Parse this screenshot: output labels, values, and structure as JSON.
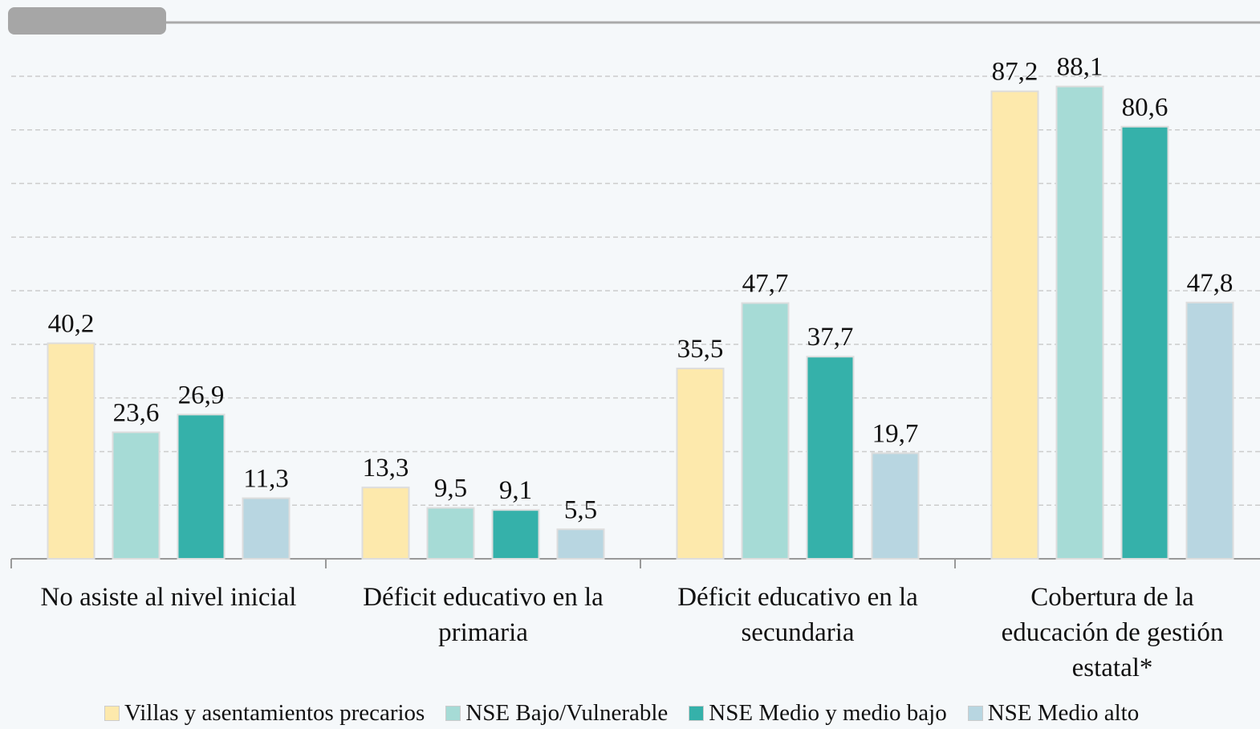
{
  "chart_data": {
    "type": "bar",
    "categories": [
      "No asiste al nivel inicial",
      "Déficit educativo en la\nprimaria",
      "Déficit educativo en la\nsecundaria",
      "Cobertura de la\neducación de gestión\nestatal*"
    ],
    "series": [
      {
        "name": "Villas y asentamientos precarios",
        "color": "#fde9ac",
        "values": [
          40.2,
          13.3,
          35.5,
          87.2
        ],
        "value_labels": [
          "40,2",
          "13,3",
          "35,5",
          "87,2"
        ]
      },
      {
        "name": "NSE Bajo/Vulnerable",
        "color": "#a6dbd6",
        "values": [
          23.6,
          9.5,
          47.7,
          88.1
        ],
        "value_labels": [
          "23,6",
          "9,5",
          "47,7",
          "88,1"
        ]
      },
      {
        "name": "NSE Medio y medio bajo",
        "color": "#35b1aa",
        "values": [
          26.9,
          9.1,
          37.7,
          80.6
        ],
        "value_labels": [
          "26,9",
          "9,1",
          "37,7",
          "80,6"
        ]
      },
      {
        "name": "NSE Medio alto",
        "color": "#b8d6e1",
        "values": [
          11.3,
          5.5,
          19.7,
          47.8
        ],
        "value_labels": [
          "11,3",
          "5,5",
          "19,7",
          "47,8"
        ]
      }
    ],
    "ylim": [
      0,
      90
    ],
    "yticks": [
      0,
      10,
      20,
      30,
      40,
      50,
      60,
      70,
      80,
      90
    ],
    "grid": true
  }
}
